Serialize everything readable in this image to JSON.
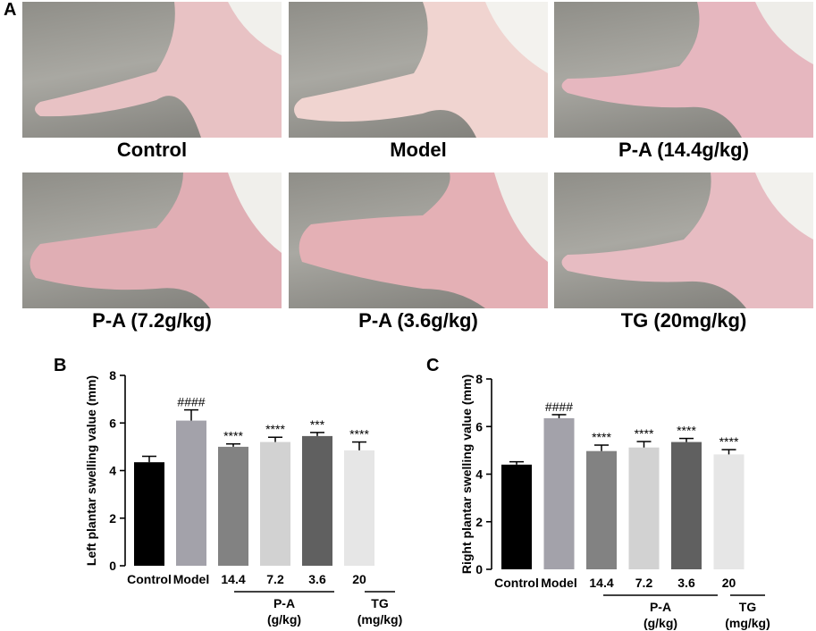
{
  "panels": {
    "a": "A",
    "b": "B",
    "c": "C"
  },
  "photos": [
    {
      "caption": "Control"
    },
    {
      "caption": "Model"
    },
    {
      "caption": "P-A (14.4g/kg)"
    },
    {
      "caption": "P-A (7.2g/kg)"
    },
    {
      "caption": "P-A (3.6g/kg)"
    },
    {
      "caption": "TG (20mg/kg)"
    }
  ],
  "colors": {
    "Control": "#000000",
    "Model": "#a3a2aa",
    "14.4": "#828282",
    "7.2": "#d2d2d2",
    "3.6": "#606060",
    "20": "#e6e6e6"
  },
  "chart_data": [
    {
      "type": "bar",
      "panel": "B",
      "ylabel": "Left plantar swelling value (mm)",
      "ylim": [
        0,
        8
      ],
      "yticks": [
        "0",
        "2",
        "4",
        "6",
        "8"
      ],
      "categories": [
        "Control",
        "Model",
        "14.4",
        "7.2",
        "3.6",
        "20"
      ],
      "values": [
        4.35,
        6.1,
        5.0,
        5.2,
        5.45,
        4.85
      ],
      "errors": [
        0.25,
        0.45,
        0.12,
        0.2,
        0.15,
        0.35
      ],
      "annotations": [
        "",
        "####",
        "****",
        "****",
        "***",
        "****"
      ],
      "groups": [
        {
          "label": "P-A",
          "sub": "(g/kg)"
        },
        {
          "label": "TG",
          "sub": "(mg/kg)"
        }
      ]
    },
    {
      "type": "bar",
      "panel": "C",
      "ylabel": "Right plantar swelling value (mm)",
      "ylim": [
        0,
        8
      ],
      "yticks": [
        "0",
        "2",
        "4",
        "6",
        "8"
      ],
      "categories": [
        "Control",
        "Model",
        "14.4",
        "7.2",
        "3.6",
        "20"
      ],
      "values": [
        4.4,
        6.35,
        4.97,
        5.12,
        5.35,
        4.83
      ],
      "errors": [
        0.12,
        0.15,
        0.25,
        0.25,
        0.15,
        0.2
      ],
      "annotations": [
        "",
        "####",
        "****",
        "****",
        "****",
        "****"
      ],
      "groups": [
        {
          "label": "P-A",
          "sub": "(g/kg)"
        },
        {
          "label": "TG",
          "sub": "(mg/kg)"
        }
      ]
    }
  ]
}
